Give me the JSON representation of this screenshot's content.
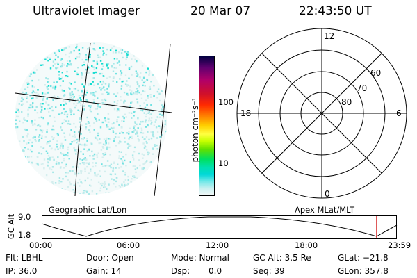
{
  "header": {
    "instrument": "Ultraviolet Imager",
    "date": "20 Mar 07",
    "time": "22:43:50 UT"
  },
  "colorbar": {
    "unit_label": "photon cm⁻²s⁻¹",
    "ticks": [
      "100",
      "10"
    ],
    "colors": [
      "#000040",
      "#600070",
      "#b0006a",
      "#d0102a",
      "#ff2a00",
      "#ff8000",
      "#ffd000",
      "#ffff40",
      "#c8ff00",
      "#60e000",
      "#00e060",
      "#00e0b0",
      "#00d8d8",
      "#70e8e8",
      "#c8f0f0",
      "#f4f8f8"
    ]
  },
  "polar": {
    "mlt_labels": [
      "12",
      "18",
      "6",
      "0"
    ],
    "lat_labels": [
      "60",
      "70",
      "80"
    ]
  },
  "orbit": {
    "left_title": "Geographic Lat/Lon",
    "right_title": "Apex MLat/MLT",
    "axis_label": "GC Alt",
    "alt_ticks": [
      "9.0",
      "1.8"
    ],
    "time_ticks": [
      "00:00",
      "06:00",
      "12:00",
      "18:00",
      "23:59"
    ],
    "marker_color": "#cc0000"
  },
  "status": {
    "flt": "Flt: LBHL",
    "ip": "IP: 36.0",
    "door": "Door: Open",
    "gain": "Gain: 14",
    "mode": "Mode: Normal",
    "dsp_label": "Dsp:",
    "dsp_value": "0.0",
    "gc_alt": "GC Alt: 3.5 Re",
    "seq": "Seq: 39",
    "glat": "GLat: −21.8",
    "glon": "GLon: 357.8"
  }
}
